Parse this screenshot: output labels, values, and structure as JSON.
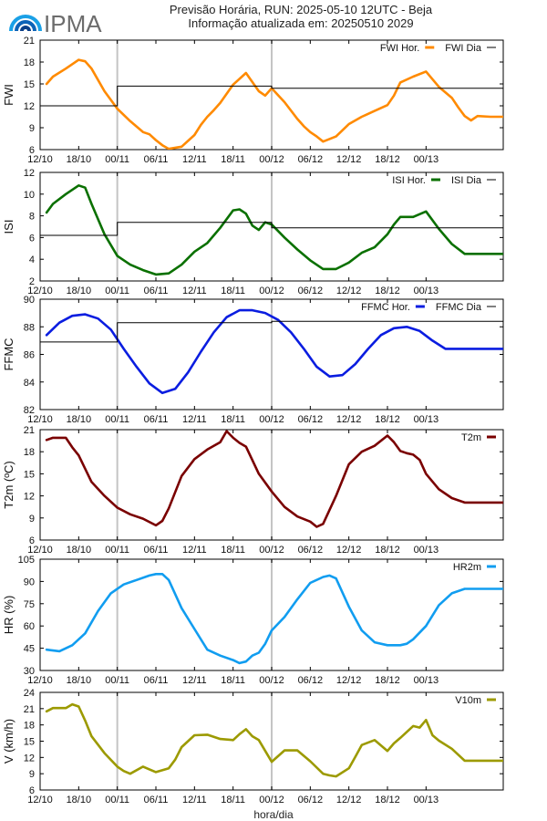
{
  "header": {
    "logo_text": "IPMA",
    "title_line1": "Previsão Horária, RUN: 2025-05-10 12UTC - Beja",
    "title_line2": "Informação atualizada em: 20250510 2029"
  },
  "xaxis_title": "hora/dia",
  "chart_data": [
    {
      "type": "line",
      "ylabel": "FWI",
      "ylim": [
        6,
        21
      ],
      "yticks": [
        6,
        9,
        12,
        15,
        18,
        21
      ],
      "xticks": [
        "12/10",
        "18/10",
        "00/11",
        "06/11",
        "12/11",
        "18/11",
        "00/12",
        "06/12",
        "12/12",
        "18/12",
        "00/13"
      ],
      "day_separators": [
        "00/11",
        "00/12"
      ],
      "legend_position": "top-right",
      "series": [
        {
          "name": "FWI Hor.",
          "color": "#ff8a00",
          "style": "smooth",
          "x": [
            13,
            14,
            16,
            18,
            19,
            20,
            22,
            24,
            26,
            28,
            29,
            30,
            31,
            32,
            34,
            36,
            37,
            38,
            39,
            40,
            42,
            44,
            46,
            47,
            48,
            50,
            52,
            53,
            54,
            55,
            56,
            58,
            60,
            62,
            64,
            66,
            67,
            68,
            70,
            72,
            74,
            76,
            77,
            78,
            79,
            80,
            82,
            84
          ],
          "values": [
            15.0,
            16.0,
            17.1,
            18.3,
            18.1,
            17.1,
            14.0,
            11.6,
            9.9,
            8.4,
            8.1,
            7.3,
            6.6,
            6.1,
            6.4,
            8.0,
            9.4,
            10.5,
            11.4,
            12.4,
            14.9,
            16.5,
            14.0,
            13.4,
            14.4,
            12.5,
            10.2,
            9.2,
            8.4,
            7.8,
            7.1,
            7.8,
            9.5,
            10.5,
            11.3,
            12.1,
            13.4,
            15.2,
            16.0,
            16.7,
            14.6,
            13.1,
            11.8,
            10.6,
            10.0,
            10.6,
            10.5,
            10.5
          ]
        },
        {
          "name": "FWI Dia",
          "color": "#000000",
          "style": "step",
          "x": [
            12,
            24,
            24,
            48,
            48,
            84
          ],
          "values": [
            12.0,
            12.0,
            14.7,
            14.7,
            14.4,
            14.4
          ]
        }
      ]
    },
    {
      "type": "line",
      "ylabel": "ISI",
      "ylim": [
        2,
        12
      ],
      "yticks": [
        2,
        4,
        6,
        8,
        10,
        12
      ],
      "xticks": [
        "12/10",
        "18/10",
        "00/11",
        "06/11",
        "12/11",
        "18/11",
        "00/12",
        "06/12",
        "12/12",
        "18/12",
        "00/13"
      ],
      "day_separators": [
        "00/11",
        "00/12"
      ],
      "legend_position": "top-right",
      "series": [
        {
          "name": "ISI Hor.",
          "color": "#0a7000",
          "style": "smooth",
          "x": [
            13,
            14,
            16,
            18,
            19,
            20,
            22,
            24,
            26,
            28,
            30,
            32,
            34,
            36,
            38,
            40,
            42,
            43,
            44,
            45,
            46,
            47,
            48,
            50,
            52,
            54,
            56,
            58,
            60,
            62,
            64,
            66,
            67,
            68,
            70,
            72,
            74,
            76,
            78,
            80,
            82,
            84
          ],
          "values": [
            8.3,
            9.1,
            10.0,
            10.8,
            10.6,
            9.1,
            6.3,
            4.3,
            3.5,
            3.0,
            2.6,
            2.7,
            3.5,
            4.7,
            5.5,
            6.9,
            8.5,
            8.6,
            8.2,
            7.1,
            6.7,
            7.4,
            7.2,
            6.0,
            4.9,
            3.9,
            3.1,
            3.1,
            3.7,
            4.6,
            5.1,
            6.3,
            7.2,
            7.9,
            7.9,
            8.4,
            6.8,
            5.4,
            4.5,
            4.5,
            4.5,
            4.5
          ]
        },
        {
          "name": "ISI Dia",
          "color": "#000000",
          "style": "step",
          "x": [
            12,
            24,
            24,
            48,
            48,
            84
          ],
          "values": [
            6.2,
            6.2,
            7.4,
            7.4,
            6.9,
            6.9
          ]
        }
      ]
    },
    {
      "type": "line",
      "ylabel": "FFMC",
      "ylim": [
        82,
        90
      ],
      "yticks": [
        82,
        84,
        86,
        88,
        90
      ],
      "xticks": [
        "12/10",
        "18/10",
        "00/11",
        "06/11",
        "12/11",
        "18/11",
        "00/12",
        "06/12",
        "12/12",
        "18/12",
        "00/13"
      ],
      "day_separators": [
        "00/11",
        "00/12"
      ],
      "legend_position": "top-right",
      "series": [
        {
          "name": "FFMC Hor.",
          "color": "#0a1de0",
          "style": "smooth",
          "x": [
            13,
            15,
            17,
            19,
            21,
            23,
            25,
            27,
            29,
            31,
            33,
            35,
            37,
            39,
            41,
            43,
            45,
            47,
            49,
            51,
            53,
            55,
            57,
            59,
            61,
            63,
            65,
            67,
            69,
            71,
            73,
            75,
            77,
            79,
            81,
            83,
            84
          ],
          "values": [
            87.4,
            88.3,
            88.8,
            88.9,
            88.6,
            87.8,
            86.4,
            85.1,
            83.9,
            83.2,
            83.5,
            84.7,
            86.2,
            87.6,
            88.7,
            89.2,
            89.2,
            89.0,
            88.5,
            87.6,
            86.4,
            85.1,
            84.4,
            84.5,
            85.3,
            86.4,
            87.4,
            87.9,
            88.0,
            87.7,
            87.0,
            86.4,
            86.4,
            86.4,
            86.4,
            86.4,
            86.4
          ]
        },
        {
          "name": "FFMC Dia",
          "color": "#000000",
          "style": "step",
          "x": [
            12,
            24,
            24,
            48,
            48,
            84
          ],
          "values": [
            86.9,
            86.9,
            88.3,
            88.3,
            88.4,
            88.4
          ]
        }
      ]
    },
    {
      "type": "line",
      "ylabel": "T2m (ºC)",
      "ylim": [
        6,
        21
      ],
      "yticks": [
        6,
        9,
        12,
        15,
        18,
        21
      ],
      "xticks": [
        "12/10",
        "18/10",
        "00/11",
        "06/11",
        "12/11",
        "18/11",
        "00/12",
        "06/12",
        "12/12",
        "18/12",
        "00/13"
      ],
      "day_separators": [
        "00/11",
        "00/12"
      ],
      "legend_position": "top-right",
      "series": [
        {
          "name": "T2m",
          "color": "#7a0000",
          "style": "smooth",
          "x": [
            13,
            14,
            16,
            17,
            18,
            20,
            22,
            24,
            26,
            28,
            30,
            31,
            32,
            34,
            36,
            38,
            40,
            41,
            42,
            43,
            44,
            46,
            48,
            50,
            52,
            54,
            55,
            56,
            58,
            60,
            62,
            64,
            66,
            67,
            68,
            69,
            70,
            71,
            72,
            74,
            76,
            78,
            80,
            82,
            84
          ],
          "values": [
            19.6,
            19.9,
            19.9,
            18.6,
            17.5,
            13.9,
            12.0,
            10.4,
            9.5,
            8.9,
            8.0,
            8.6,
            10.3,
            14.7,
            17.0,
            18.3,
            19.3,
            20.8,
            19.9,
            19.2,
            18.7,
            15.0,
            12.6,
            10.5,
            9.2,
            8.5,
            7.8,
            8.2,
            12.0,
            16.3,
            18.0,
            18.8,
            20.2,
            19.3,
            18.1,
            17.8,
            17.6,
            16.9,
            15.0,
            12.9,
            11.7,
            11.1,
            11.1,
            11.1,
            11.1
          ]
        }
      ]
    },
    {
      "type": "line",
      "ylabel": "HR (%)",
      "ylim": [
        30,
        105
      ],
      "yticks": [
        30,
        45,
        60,
        75,
        90,
        105
      ],
      "xticks": [
        "12/10",
        "18/10",
        "00/11",
        "06/11",
        "12/11",
        "18/11",
        "00/12",
        "06/12",
        "12/12",
        "18/12",
        "00/13"
      ],
      "day_separators": [
        "00/11",
        "00/12"
      ],
      "legend_position": "top-right",
      "series": [
        {
          "name": "HR2m",
          "color": "#119df0",
          "style": "smooth",
          "x": [
            13,
            15,
            17,
            19,
            21,
            23,
            25,
            27,
            29,
            30,
            31,
            32,
            34,
            36,
            38,
            40,
            42,
            43,
            44,
            45,
            46,
            47,
            48,
            50,
            52,
            54,
            56,
            57,
            58,
            60,
            62,
            64,
            66,
            68,
            69,
            70,
            72,
            74,
            76,
            78,
            80,
            82,
            84
          ],
          "values": [
            44,
            43,
            47,
            55,
            70,
            82,
            88,
            91,
            94,
            95,
            95,
            91,
            72,
            58,
            44,
            40,
            37,
            35,
            36,
            40,
            42,
            48,
            57,
            66,
            78,
            89,
            93,
            94,
            92,
            73,
            57,
            49,
            47,
            47,
            48,
            51,
            60,
            74,
            82,
            85,
            85,
            85,
            85
          ]
        }
      ]
    },
    {
      "type": "line",
      "ylabel": "V (km/h)",
      "ylim": [
        6,
        24
      ],
      "yticks": [
        6,
        9,
        12,
        15,
        18,
        21,
        24
      ],
      "xticks": [
        "12/10",
        "18/10",
        "00/11",
        "06/11",
        "12/11",
        "18/11",
        "00/12",
        "06/12",
        "12/12",
        "18/12",
        "00/13"
      ],
      "day_separators": [
        "00/11",
        "00/12"
      ],
      "legend_position": "top-right",
      "series": [
        {
          "name": "V10m",
          "color": "#9c9a00",
          "style": "smooth",
          "x": [
            13,
            14,
            16,
            17,
            18,
            19,
            20,
            22,
            24,
            25,
            26,
            28,
            29,
            30,
            32,
            33,
            34,
            36,
            38,
            40,
            42,
            43,
            44,
            45,
            46,
            48,
            50,
            52,
            54,
            56,
            57,
            58,
            60,
            61,
            62,
            64,
            66,
            67,
            68,
            70,
            71,
            72,
            73,
            74,
            76,
            78,
            80,
            82,
            84
          ],
          "values": [
            20.5,
            21.1,
            21.1,
            21.8,
            21.4,
            18.8,
            15.9,
            12.8,
            10.3,
            9.5,
            9.0,
            10.3,
            9.8,
            9.3,
            10.0,
            11.6,
            13.9,
            16.1,
            16.2,
            15.4,
            15.2,
            16.3,
            17.2,
            15.9,
            15.2,
            11.2,
            13.3,
            13.3,
            11.3,
            9.0,
            8.7,
            8.5,
            10.0,
            12.1,
            14.3,
            15.2,
            13.2,
            14.6,
            15.6,
            17.8,
            17.5,
            18.9,
            16.1,
            15.1,
            13.6,
            11.4,
            11.4,
            11.4,
            11.4
          ]
        }
      ]
    }
  ]
}
